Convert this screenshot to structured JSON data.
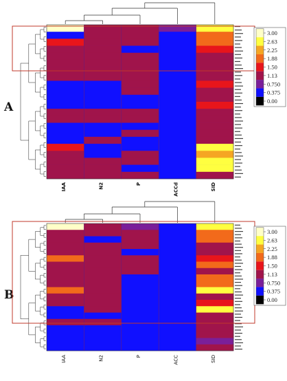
{
  "chart_data": [
    {
      "type": "heatmap",
      "panel_label": "A",
      "columns": [
        "IAA",
        "N2",
        "P",
        "ACCd",
        "SID"
      ],
      "color_scale": {
        "ticks": [
          "3.00",
          "2.63",
          "2.25",
          "1.88",
          "1.50",
          "1.13",
          "0.750",
          "0.375",
          "0.00"
        ],
        "colors": [
          "#ffffc8",
          "#ffff40",
          "#f5a623",
          "#f26a1b",
          "#e8151b",
          "#a0144b",
          "#7a1f99",
          "#1010ff",
          "#000000"
        ],
        "range": [
          0,
          3
        ]
      },
      "dendrogram": [
        "top",
        "left"
      ],
      "highlight_rows": "top cluster",
      "column_values": {
        "IAA": [
          3.0,
          0.375,
          1.5,
          1.13,
          1.13,
          1.13,
          1.13,
          1.13,
          0.375,
          0.375,
          0.375,
          0.375,
          1.13,
          1.13,
          0.375,
          0.375,
          0.375,
          1.5,
          1.13,
          1.13,
          1.13,
          1.13
        ],
        "N2": [
          1.13,
          1.13,
          1.13,
          1.13,
          1.13,
          1.13,
          1.13,
          1.13,
          0.375,
          0.375,
          0.375,
          0.375,
          1.13,
          1.13,
          0.375,
          0.375,
          1.13,
          0.375,
          0.375,
          1.13,
          1.13,
          1.13
        ],
        "P": [
          1.13,
          1.13,
          1.13,
          0.375,
          1.13,
          1.13,
          1.13,
          1.13,
          1.13,
          1.13,
          0.375,
          0.375,
          1.13,
          1.13,
          0.375,
          1.13,
          0.375,
          0.375,
          1.13,
          1.13,
          0.375,
          1.13
        ],
        "ACCd": [
          0.75,
          0.375,
          0.375,
          0.375,
          0.375,
          0.375,
          0.375,
          0.375,
          0.375,
          0.375,
          0.375,
          0.375,
          0.375,
          0.375,
          0.375,
          0.375,
          0.375,
          0.375,
          0.375,
          0.375,
          0.375,
          0.375
        ],
        "SID": [
          2.63,
          1.88,
          1.88,
          1.5,
          1.13,
          1.13,
          1.13,
          1.13,
          1.5,
          1.13,
          1.13,
          1.5,
          1.13,
          1.13,
          1.13,
          1.13,
          1.13,
          2.63,
          2.25,
          2.63,
          2.63,
          1.13
        ]
      }
    },
    {
      "type": "heatmap",
      "panel_label": "B",
      "columns": [
        "IAA",
        "N2",
        "P",
        "ACC",
        "SID"
      ],
      "color_scale": {
        "ticks": [
          "3.00",
          "2.63",
          "2.25",
          "1.88",
          "1.50",
          "1.13",
          "0.750",
          "0.375",
          "0.00"
        ],
        "colors": [
          "#ffffc8",
          "#ffff40",
          "#f5a623",
          "#f26a1b",
          "#e8151b",
          "#a0144b",
          "#7a1f99",
          "#1010ff",
          "#000000"
        ],
        "range": [
          0,
          3
        ]
      },
      "dendrogram": [
        "top",
        "left"
      ],
      "highlight_rows": "top cluster",
      "column_values": {
        "IAA": [
          3.0,
          1.13,
          1.13,
          1.13,
          1.13,
          1.88,
          1.13,
          1.13,
          1.13,
          1.13,
          1.88,
          1.13,
          1.13,
          0.375,
          0.375,
          1.13,
          0.375,
          0.375,
          0.375,
          0.375
        ],
        "N2": [
          1.13,
          1.13,
          0.375,
          1.13,
          1.13,
          1.13,
          1.13,
          1.13,
          1.13,
          1.13,
          1.13,
          1.13,
          1.13,
          1.13,
          0.375,
          1.13,
          0.375,
          0.375,
          0.375,
          0.375
        ],
        "P": [
          0.75,
          1.13,
          1.13,
          1.13,
          0.375,
          1.13,
          1.13,
          1.13,
          0.375,
          0.375,
          0.375,
          0.375,
          0.375,
          0.375,
          0.375,
          0.375,
          0.375,
          0.375,
          0.375,
          0.375
        ],
        "ACC": [
          0.375,
          0.375,
          0.375,
          0.375,
          0.375,
          0.375,
          0.375,
          0.375,
          0.375,
          0.375,
          0.375,
          0.375,
          0.375,
          0.375,
          0.375,
          0.375,
          0.375,
          0.375,
          0.375,
          0.375
        ],
        "SID": [
          2.63,
          1.88,
          1.88,
          1.13,
          1.13,
          1.5,
          1.88,
          1.13,
          1.88,
          1.88,
          2.63,
          1.13,
          1.5,
          2.63,
          1.13,
          1.13,
          1.13,
          1.13,
          0.75,
          1.13
        ]
      }
    }
  ]
}
